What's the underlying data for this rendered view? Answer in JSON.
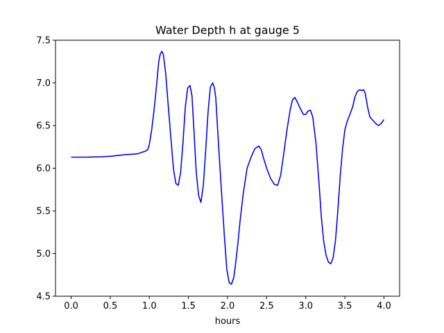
{
  "chart_data": {
    "type": "line",
    "title": "Water Depth h at gauge 5",
    "xlabel": "hours",
    "ylabel": "",
    "xlim": [
      -0.2,
      4.2
    ],
    "ylim": [
      4.5,
      7.5
    ],
    "x_ticks": [
      0.0,
      0.5,
      1.0,
      1.5,
      2.0,
      2.5,
      3.0,
      3.5,
      4.0
    ],
    "x_tick_labels": [
      "0.0",
      "0.5",
      "1.0",
      "1.5",
      "2.0",
      "2.5",
      "3.0",
      "3.5",
      "4.0"
    ],
    "y_ticks": [
      4.5,
      5.0,
      5.5,
      6.0,
      6.5,
      7.0,
      7.5
    ],
    "y_tick_labels": [
      "4.5",
      "5.0",
      "5.5",
      "6.0",
      "6.5",
      "7.0",
      "7.5"
    ],
    "grid": false,
    "legend": "none",
    "series": [
      {
        "color": "#0000ff",
        "x": [
          0.0,
          0.2,
          0.4,
          0.5,
          0.6,
          0.7,
          0.8,
          0.85,
          0.9,
          0.95,
          0.98,
          1.0,
          1.03,
          1.06,
          1.09,
          1.12,
          1.14,
          1.16,
          1.18,
          1.21,
          1.24,
          1.28,
          1.31,
          1.34,
          1.37,
          1.4,
          1.43,
          1.46,
          1.49,
          1.52,
          1.545,
          1.57,
          1.6,
          1.63,
          1.66,
          1.69,
          1.72,
          1.75,
          1.78,
          1.81,
          1.83,
          1.85,
          1.87,
          1.9,
          1.93,
          1.96,
          1.99,
          2.02,
          2.05,
          2.08,
          2.1,
          2.13,
          2.16,
          2.2,
          2.25,
          2.3,
          2.35,
          2.4,
          2.43,
          2.46,
          2.5,
          2.55,
          2.6,
          2.64,
          2.68,
          2.72,
          2.76,
          2.8,
          2.83,
          2.86,
          2.89,
          2.93,
          2.97,
          3.0,
          3.03,
          3.06,
          3.09,
          3.13,
          3.17,
          3.2,
          3.23,
          3.26,
          3.29,
          3.32,
          3.35,
          3.38,
          3.41,
          3.44,
          3.47,
          3.5,
          3.53,
          3.56,
          3.6,
          3.63,
          3.66,
          3.69,
          3.72,
          3.74,
          3.76,
          3.79,
          3.82,
          3.86,
          3.9,
          3.93,
          3.96,
          4.0
        ],
        "y": [
          6.13,
          6.13,
          6.135,
          6.14,
          6.15,
          6.16,
          6.165,
          6.17,
          6.185,
          6.2,
          6.22,
          6.28,
          6.45,
          6.68,
          6.95,
          7.25,
          7.34,
          7.37,
          7.33,
          7.1,
          6.75,
          6.3,
          5.98,
          5.82,
          5.8,
          5.95,
          6.3,
          6.72,
          6.94,
          6.97,
          6.85,
          6.45,
          5.95,
          5.68,
          5.6,
          5.8,
          6.2,
          6.65,
          6.95,
          7.0,
          6.95,
          6.82,
          6.5,
          6.05,
          5.62,
          5.2,
          4.82,
          4.66,
          4.64,
          4.72,
          4.86,
          5.1,
          5.38,
          5.7,
          6.0,
          6.13,
          6.23,
          6.26,
          6.22,
          6.12,
          6.0,
          5.88,
          5.81,
          5.8,
          5.92,
          6.18,
          6.45,
          6.68,
          6.8,
          6.83,
          6.78,
          6.7,
          6.63,
          6.63,
          6.67,
          6.68,
          6.6,
          6.3,
          5.82,
          5.42,
          5.14,
          4.98,
          4.9,
          4.88,
          4.95,
          5.15,
          5.5,
          5.9,
          6.22,
          6.45,
          6.55,
          6.62,
          6.72,
          6.84,
          6.9,
          6.92,
          6.91,
          6.92,
          6.88,
          6.72,
          6.6,
          6.56,
          6.52,
          6.5,
          6.52,
          6.57
        ]
      }
    ]
  }
}
